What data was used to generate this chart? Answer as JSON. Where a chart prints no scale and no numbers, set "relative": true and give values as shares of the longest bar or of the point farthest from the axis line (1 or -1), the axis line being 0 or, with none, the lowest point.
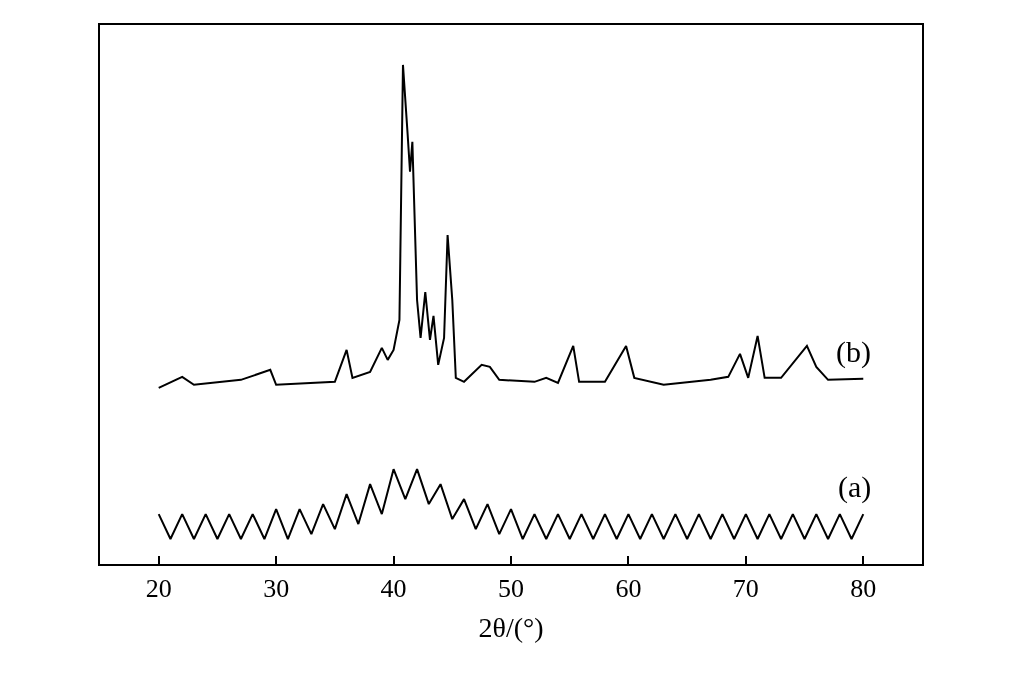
{
  "chart_data": {
    "type": "line",
    "relative": true,
    "xlabel": "2θ/(°)",
    "xlim": [
      15,
      85
    ],
    "xticks": [
      20,
      30,
      40,
      50,
      60,
      70,
      80
    ],
    "tick_labels": "x",
    "legend": false,
    "marker": "none",
    "line_style": "solid",
    "series": [
      {
        "name": "(b)",
        "color": "#000000",
        "x": [
          20,
          22,
          23,
          27,
          29.5,
          30,
          35,
          36,
          36.5,
          38,
          39,
          39.5,
          40,
          40.5,
          40.8,
          41.2,
          41.4,
          41.6,
          42,
          42.3,
          42.7,
          43.1,
          43.4,
          43.8,
          44.3,
          44.6,
          45.0,
          45.3,
          46,
          47.5,
          48.2,
          49,
          52,
          53,
          54,
          55.3,
          55.8,
          58,
          59.8,
          60.5,
          63,
          67,
          68.5,
          69.5,
          70.2,
          71,
          71.6,
          73,
          75.2,
          76,
          77,
          80
        ],
        "values": [
          0.353,
          0.375,
          0.359,
          0.369,
          0.389,
          0.359,
          0.365,
          0.429,
          0.373,
          0.385,
          0.433,
          0.409,
          0.429,
          0.489,
          1.0,
          0.86,
          0.786,
          0.846,
          0.529,
          0.453,
          0.545,
          0.449,
          0.497,
          0.399,
          0.453,
          0.659,
          0.529,
          0.373,
          0.365,
          0.399,
          0.395,
          0.369,
          0.365,
          0.373,
          0.363,
          0.437,
          0.365,
          0.365,
          0.437,
          0.373,
          0.359,
          0.369,
          0.375,
          0.421,
          0.373,
          0.457,
          0.373,
          0.373,
          0.437,
          0.395,
          0.369,
          0.371
        ]
      },
      {
        "name": "(a)",
        "color": "#000000",
        "x": [
          20,
          21,
          22,
          23,
          24,
          25,
          26,
          27,
          28,
          29,
          30,
          31,
          32,
          33,
          34,
          35,
          36,
          37,
          38,
          39,
          40,
          41,
          42,
          43,
          44,
          45,
          46,
          47,
          48,
          49,
          50,
          51,
          52,
          53,
          54,
          55,
          56,
          57,
          58,
          59,
          60,
          61,
          62,
          63,
          64,
          65,
          66,
          67,
          68,
          69,
          70,
          71,
          72,
          73,
          74,
          75,
          76,
          77,
          78,
          79,
          80
        ],
        "values": [
          0.1,
          0.05,
          0.1,
          0.05,
          0.1,
          0.05,
          0.1,
          0.05,
          0.1,
          0.05,
          0.11,
          0.05,
          0.11,
          0.06,
          0.12,
          0.07,
          0.14,
          0.08,
          0.16,
          0.1,
          0.19,
          0.13,
          0.19,
          0.12,
          0.16,
          0.09,
          0.13,
          0.07,
          0.12,
          0.06,
          0.11,
          0.05,
          0.1,
          0.05,
          0.1,
          0.05,
          0.1,
          0.05,
          0.1,
          0.05,
          0.1,
          0.05,
          0.1,
          0.05,
          0.1,
          0.05,
          0.1,
          0.05,
          0.1,
          0.05,
          0.1,
          0.05,
          0.1,
          0.05,
          0.1,
          0.05,
          0.1,
          0.05,
          0.1,
          0.05,
          0.1
        ]
      }
    ]
  }
}
